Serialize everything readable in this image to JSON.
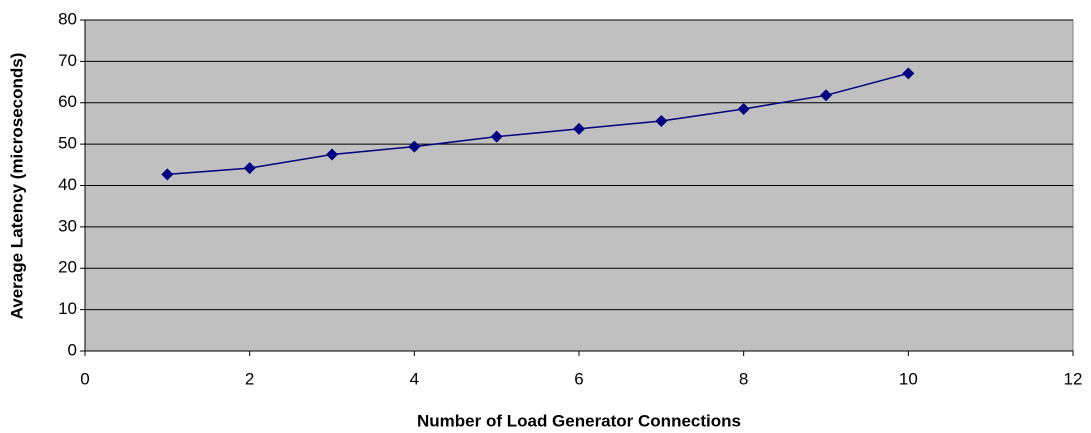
{
  "chart_data": {
    "type": "line",
    "x_label": "Number of Load Generator Connections",
    "y_label": "Average Latency (microseconds)",
    "x": [
      1,
      2,
      3,
      4,
      5,
      6,
      7,
      8,
      9,
      10
    ],
    "values": [
      42.7,
      44.2,
      47.5,
      49.4,
      51.8,
      53.7,
      55.6,
      58.5,
      61.8,
      67.1
    ],
    "color": "#000080",
    "plot_background": "#c0c0c0",
    "xlim": [
      0,
      12
    ],
    "xticks": [
      0,
      2,
      4,
      6,
      8,
      10,
      12
    ],
    "ylim": [
      0,
      80
    ],
    "yticks": [
      0,
      10,
      20,
      30,
      40,
      50,
      60,
      70,
      80
    ],
    "grid": true
  }
}
